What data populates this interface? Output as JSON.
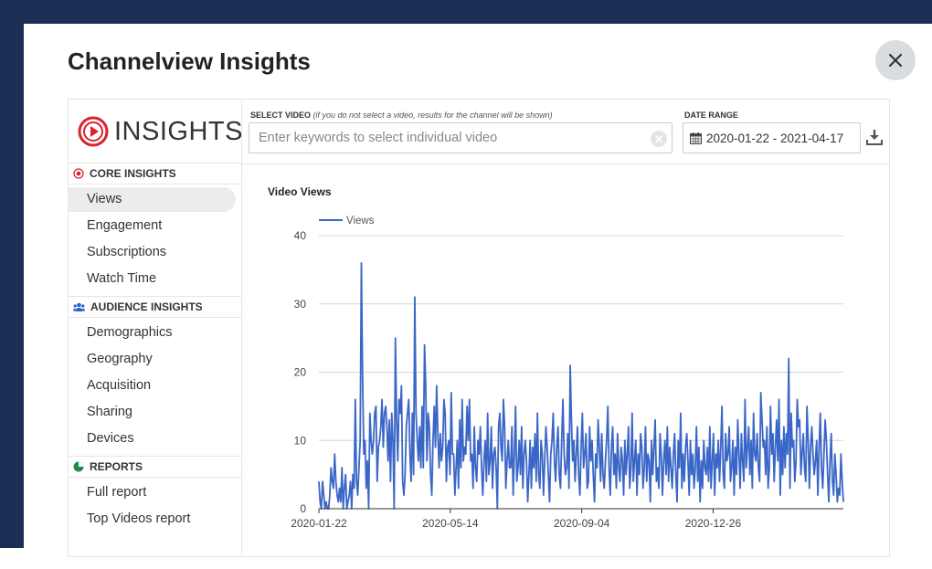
{
  "modal": {
    "title": "Channelview Insights",
    "close_icon": "close-icon"
  },
  "logo": {
    "text": "INSIGHTS",
    "icon": "play-circle-logo",
    "color": "#d9232d"
  },
  "sidebar": {
    "sections": [
      {
        "title": "CORE INSIGHTS",
        "icon": "target-icon",
        "icon_color": "#d9232d",
        "items": [
          "Views",
          "Engagement",
          "Subscriptions",
          "Watch Time"
        ],
        "active": "Views"
      },
      {
        "title": "AUDIENCE INSIGHTS",
        "icon": "users-icon",
        "icon_color": "#2a63c4",
        "items": [
          "Demographics",
          "Geography",
          "Acquisition",
          "Sharing",
          "Devices"
        ]
      },
      {
        "title": "REPORTS",
        "icon": "pie-chart-icon",
        "icon_color": "#1f8a4c",
        "items": [
          "Full report",
          "Top Videos report"
        ]
      }
    ]
  },
  "select_video": {
    "label": "SELECT VIDEO",
    "hint": "(if you do not select a video, results for the channel will be shown)",
    "placeholder": "Enter keywords to select individual video",
    "value": ""
  },
  "date_range": {
    "label": "DATE RANGE",
    "value": "2020-01-22 - 2021-04-17",
    "icon": "calendar-icon"
  },
  "download_icon": "download-icon",
  "colors": {
    "backdrop": "#1b2f55",
    "series": "#3a66c7",
    "accent_red": "#d9232d"
  },
  "chart_data": {
    "type": "line",
    "title": "Video Views",
    "xlabel": "",
    "ylabel": "",
    "ylim": [
      0,
      40
    ],
    "yticks": [
      0,
      10,
      20,
      30,
      40
    ],
    "xticks": [
      "2020-01-22",
      "2020-05-14",
      "2020-09-04",
      "2020-12-26"
    ],
    "x_start": "2020-01-22",
    "x_end": "2021-04-17",
    "legend": "top-left",
    "grid": true,
    "series": [
      {
        "name": "Views",
        "color": "#3a66c7",
        "values": [
          4,
          1,
          0,
          4,
          2,
          0,
          1,
          0,
          0,
          2,
          6,
          4,
          3,
          8,
          4,
          2,
          1,
          3,
          1,
          6,
          0,
          3,
          5,
          0,
          1,
          2,
          4,
          0,
          5,
          3,
          16,
          4,
          2,
          6,
          10,
          36,
          19,
          8,
          10,
          3,
          7,
          0,
          14,
          10,
          8,
          10,
          14,
          15,
          4,
          9,
          10,
          12,
          16,
          9,
          14,
          15,
          12,
          7,
          13,
          4,
          14,
          10,
          0,
          25,
          13,
          7,
          16,
          14,
          18,
          4,
          2,
          5,
          12,
          14,
          16,
          8,
          4,
          14,
          5,
          31,
          14,
          10,
          7,
          12,
          6,
          15,
          6,
          24,
          18,
          7,
          14,
          12,
          5,
          2,
          10,
          15,
          9,
          18,
          11,
          6,
          11,
          7,
          9,
          16,
          14,
          4,
          9,
          10,
          5,
          17,
          8,
          8,
          2,
          6,
          10,
          3,
          13,
          6,
          16,
          7,
          9,
          8,
          15,
          10,
          16,
          7,
          8,
          3,
          12,
          6,
          4,
          10,
          8,
          12,
          6,
          2,
          7,
          10,
          4,
          14,
          5,
          7,
          12,
          3,
          8,
          9,
          6,
          0,
          12,
          14,
          9,
          7,
          16,
          12,
          3,
          7,
          10,
          6,
          6,
          12,
          2,
          8,
          15,
          4,
          6,
          10,
          5,
          12,
          3,
          8,
          10,
          7,
          1,
          5,
          10,
          3,
          9,
          6,
          11,
          4,
          14,
          5,
          3,
          10,
          8,
          2,
          7,
          12,
          9,
          5,
          1,
          8,
          10,
          14,
          7,
          4,
          9,
          12,
          5,
          3,
          10,
          16,
          8,
          5,
          6,
          11,
          3,
          21,
          13,
          7,
          10,
          4,
          8,
          12,
          5,
          2,
          9,
          14,
          6,
          8,
          11,
          3,
          4,
          12,
          7,
          10,
          5,
          1,
          8,
          6,
          13,
          9,
          4,
          11,
          5,
          3,
          7,
          10,
          15,
          6,
          2,
          9,
          12,
          5,
          8,
          3,
          11,
          6,
          4,
          9,
          7,
          2,
          10,
          5,
          8,
          12,
          3,
          6,
          14,
          4,
          7,
          10,
          2,
          8,
          5,
          11,
          9,
          3,
          6,
          12,
          4,
          8,
          7,
          1,
          10,
          5,
          9,
          13,
          4,
          6,
          3,
          11,
          8,
          2,
          7,
          10,
          5,
          12,
          4,
          9,
          6,
          3,
          8,
          11,
          5,
          1,
          10,
          6,
          14,
          3,
          8,
          4,
          9,
          11,
          7,
          2,
          10,
          5,
          8,
          3,
          6,
          12,
          4,
          9,
          1,
          7,
          3,
          10,
          6,
          5,
          9,
          4,
          12,
          3,
          7,
          11,
          2,
          8,
          6,
          10,
          4,
          9,
          15,
          5,
          3,
          11,
          7,
          8,
          12,
          4,
          6,
          10,
          2,
          9,
          5,
          13,
          8,
          3,
          11,
          7,
          4,
          16,
          6,
          9,
          12,
          5,
          10,
          3,
          14,
          8,
          7,
          11,
          6,
          4,
          17,
          13,
          9,
          10,
          5,
          12,
          3,
          6,
          15,
          8,
          11,
          4,
          9,
          13,
          7,
          16,
          2,
          10,
          5,
          12,
          6,
          11,
          8,
          22,
          3,
          14,
          9,
          10,
          4,
          7,
          16,
          12,
          13,
          5,
          8,
          11,
          6,
          4,
          15,
          10,
          3,
          9,
          12,
          8,
          5,
          7,
          10,
          2,
          9,
          14,
          6,
          3,
          8,
          13,
          10,
          5,
          1,
          7,
          11,
          4,
          2,
          8,
          5,
          1,
          3,
          2,
          8,
          4,
          1
        ]
      }
    ]
  }
}
